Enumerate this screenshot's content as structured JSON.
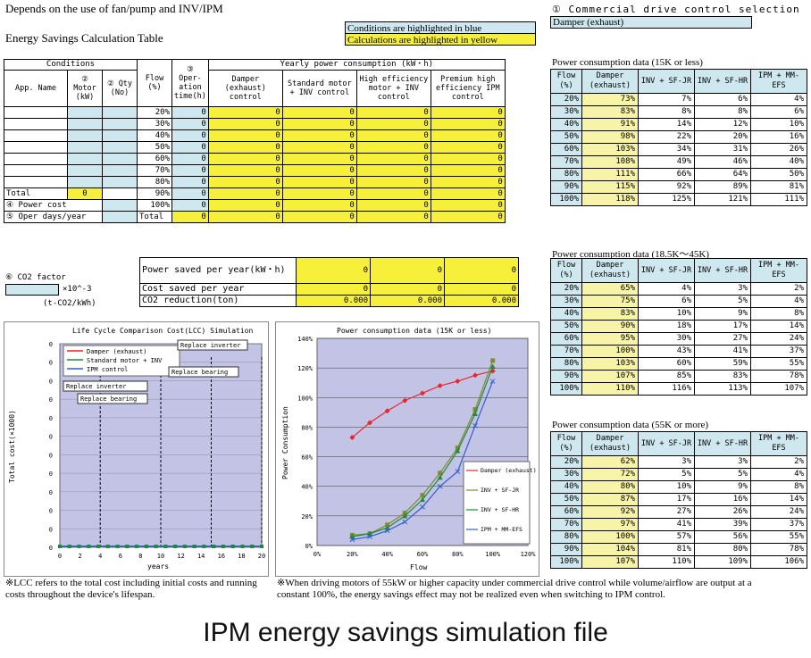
{
  "header": {
    "title": "Depends on the use of fan/pump and INV/IPM",
    "table_title": "Energy Savings Calculation Table",
    "legend_blue": "Conditions are highlighted in blue",
    "legend_yellow": "Calculations are highlighted in yellow",
    "selection_label": "① Commercial drive control selection",
    "selection_value": "Damper (exhaust)"
  },
  "conditions": {
    "title": "Conditions",
    "col_app": "App. Name",
    "col_motor": "② Motor (kW)",
    "col_qty": "② Qty (No)",
    "total_label": "Total",
    "total_value": "0",
    "power_cost": "④ Power cost",
    "oper_days": "⑤ Oper days/year"
  },
  "calc": {
    "flow_header": "Flow (%)",
    "oper_header": "③ Oper- ation time(h)",
    "yearly_header": "Yearly power consumption (kW・h)",
    "cols": [
      "Damper (exhaust) control",
      "Standard motor + INV control",
      "High efficiency motor + INV control",
      "Premium high efficiency IPM control"
    ],
    "rows": [
      {
        "flow": "20%",
        "time": "0",
        "v": [
          "0",
          "0",
          "0",
          "0"
        ]
      },
      {
        "flow": "30%",
        "time": "0",
        "v": [
          "0",
          "0",
          "0",
          "0"
        ]
      },
      {
        "flow": "40%",
        "time": "0",
        "v": [
          "0",
          "0",
          "0",
          "0"
        ]
      },
      {
        "flow": "50%",
        "time": "0",
        "v": [
          "0",
          "0",
          "0",
          "0"
        ]
      },
      {
        "flow": "60%",
        "time": "0",
        "v": [
          "0",
          "0",
          "0",
          "0"
        ]
      },
      {
        "flow": "70%",
        "time": "0",
        "v": [
          "0",
          "0",
          "0",
          "0"
        ]
      },
      {
        "flow": "80%",
        "time": "0",
        "v": [
          "0",
          "0",
          "0",
          "0"
        ]
      },
      {
        "flow": "90%",
        "time": "0",
        "v": [
          "0",
          "0",
          "0",
          "0"
        ]
      },
      {
        "flow": "100%",
        "time": "0",
        "v": [
          "0",
          "0",
          "0",
          "0"
        ]
      }
    ],
    "total_label": "Total",
    "total": [
      "0",
      "0",
      "0",
      "0",
      "0"
    ]
  },
  "savings": {
    "co2_factor": "⑥ CO2 factor",
    "co2_unit": "×10^-3",
    "co2_unit2": "(t-CO2/kWh)",
    "rows": [
      {
        "label": "Power saved per year(kW・h)",
        "v": [
          "0",
          "0",
          "0"
        ]
      },
      {
        "label": "Cost saved per year",
        "v": [
          "0",
          "0",
          "0"
        ]
      },
      {
        "label": "CO2 reduction(ton)",
        "v": [
          "0.000",
          "0.000",
          "0.000"
        ]
      }
    ]
  },
  "pc_tables": [
    {
      "title": "Power consumption data (15K or less)",
      "headers": [
        "Flow (%)",
        "Damper (exhaust)",
        "INV + SF-JR",
        "INV + SF-HR",
        "IPM + MM-EFS"
      ],
      "rows": [
        [
          "20%",
          "73%",
          "7%",
          "6%",
          "4%"
        ],
        [
          "30%",
          "83%",
          "8%",
          "8%",
          "6%"
        ],
        [
          "40%",
          "91%",
          "14%",
          "12%",
          "10%"
        ],
        [
          "50%",
          "98%",
          "22%",
          "20%",
          "16%"
        ],
        [
          "60%",
          "103%",
          "34%",
          "31%",
          "26%"
        ],
        [
          "70%",
          "108%",
          "49%",
          "46%",
          "40%"
        ],
        [
          "80%",
          "111%",
          "66%",
          "64%",
          "50%"
        ],
        [
          "90%",
          "115%",
          "92%",
          "89%",
          "81%"
        ],
        [
          "100%",
          "118%",
          "125%",
          "121%",
          "111%"
        ]
      ]
    },
    {
      "title": "Power consumption data (18.5K～45K)",
      "headers": [
        "Flow (%)",
        "Damper (exhaust)",
        "INV + SF-JR",
        "INV + SF-HR",
        "IPM + MM-EFS"
      ],
      "rows": [
        [
          "20%",
          "65%",
          "4%",
          "3%",
          "2%"
        ],
        [
          "30%",
          "75%",
          "6%",
          "5%",
          "4%"
        ],
        [
          "40%",
          "83%",
          "10%",
          "9%",
          "8%"
        ],
        [
          "50%",
          "90%",
          "18%",
          "17%",
          "14%"
        ],
        [
          "60%",
          "95%",
          "30%",
          "27%",
          "24%"
        ],
        [
          "70%",
          "100%",
          "43%",
          "41%",
          "37%"
        ],
        [
          "80%",
          "103%",
          "60%",
          "59%",
          "55%"
        ],
        [
          "90%",
          "107%",
          "85%",
          "83%",
          "78%"
        ],
        [
          "100%",
          "110%",
          "116%",
          "113%",
          "107%"
        ]
      ]
    },
    {
      "title": "Power consumption data (55K or more)",
      "headers": [
        "Flow (%)",
        "Damper (exhaust)",
        "INV + SF-JR",
        "INV + SF-HR",
        "IPM + MM-EFS"
      ],
      "rows": [
        [
          "20%",
          "62%",
          "3%",
          "3%",
          "2%"
        ],
        [
          "30%",
          "72%",
          "5%",
          "5%",
          "4%"
        ],
        [
          "40%",
          "80%",
          "10%",
          "9%",
          "8%"
        ],
        [
          "50%",
          "87%",
          "17%",
          "16%",
          "14%"
        ],
        [
          "60%",
          "92%",
          "27%",
          "26%",
          "24%"
        ],
        [
          "70%",
          "97%",
          "41%",
          "39%",
          "37%"
        ],
        [
          "80%",
          "100%",
          "57%",
          "56%",
          "55%"
        ],
        [
          "90%",
          "104%",
          "81%",
          "80%",
          "78%"
        ],
        [
          "100%",
          "107%",
          "110%",
          "109%",
          "106%"
        ]
      ]
    }
  ],
  "lcc_chart": {
    "title": "Life Cycle Comparison Cost(LCC) Simulation",
    "ylabel": "Total cost(×1000)",
    "xlabel": "years",
    "legend": [
      "Damper (exhaust)",
      "Standard motor + INV",
      "IPM control"
    ],
    "annotations": [
      "Replace inverter",
      "Replace bearing",
      "Replace inverter",
      "Replace bearing"
    ],
    "xticks": [
      "0",
      "2",
      "4",
      "6",
      "8",
      "10",
      "12",
      "14",
      "16",
      "18",
      "20"
    ],
    "yticks": [
      "0",
      "0",
      "0",
      "0",
      "0",
      "0",
      "0",
      "0",
      "0",
      "0",
      "0",
      "0"
    ]
  },
  "chart_data": {
    "type": "line",
    "title": "Power consumption data (15K or less)",
    "xlabel": "Flow",
    "ylabel": "Power Consumption",
    "x": [
      20,
      30,
      40,
      50,
      60,
      70,
      80,
      90,
      100
    ],
    "xticks": [
      "0%",
      "20%",
      "40%",
      "60%",
      "80%",
      "100%",
      "120%"
    ],
    "yticks": [
      "0%",
      "20%",
      "40%",
      "60%",
      "80%",
      "100%",
      "120%",
      "140%"
    ],
    "xlim": [
      0,
      120
    ],
    "ylim": [
      0,
      140
    ],
    "legend_position": "bottom-right",
    "series": [
      {
        "name": "Damper (exhaust)",
        "color": "#e8262b",
        "marker": "diamond",
        "values": [
          73,
          83,
          91,
          98,
          103,
          108,
          111,
          115,
          118
        ]
      },
      {
        "name": "INV + SF-JR",
        "color": "#7f8b2f",
        "marker": "square",
        "values": [
          7,
          8,
          14,
          22,
          34,
          49,
          66,
          92,
          125
        ]
      },
      {
        "name": "INV + SF-HR",
        "color": "#1f8a3a",
        "marker": "triangle",
        "values": [
          6,
          8,
          12,
          20,
          31,
          46,
          64,
          89,
          121
        ]
      },
      {
        "name": "IPM + MM-EFS",
        "color": "#2f5fd0",
        "marker": "x",
        "values": [
          4,
          6,
          10,
          16,
          26,
          40,
          50,
          81,
          111
        ]
      }
    ]
  },
  "notes": {
    "left": "※LCC refers to the total cost including initial costs and running costs throughout the device's lifespan.",
    "right": "※When driving motors of 55kW or higher capacity under commercial drive control while volume/airflow are output at a constant 100%, the energy savings effect may not be realized even when switching to IPM control."
  },
  "caption": "IPM energy savings simulation file"
}
